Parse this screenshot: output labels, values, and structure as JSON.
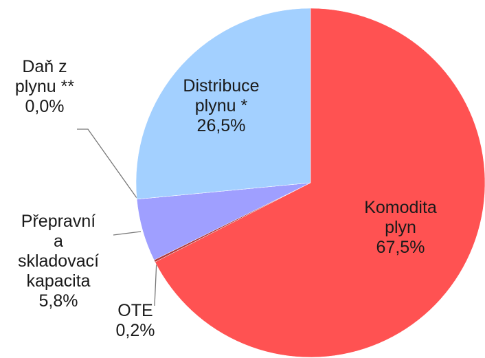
{
  "chart_data": {
    "type": "pie",
    "categories": [
      "Komodita plyn",
      "OTE",
      "Přepravní a skladovací kapacita",
      "Daň z plynu **",
      "Distribuce plynu *"
    ],
    "values": [
      67.5,
      0.2,
      5.8,
      0.0,
      26.5
    ],
    "value_labels": [
      "67,5%",
      "0,2%",
      "5,8%",
      "0,0%",
      "26,5%"
    ],
    "colors": [
      "#ff5252",
      "#b03a3a",
      "#9f9fff",
      "#8888ee",
      "#a3d0ff"
    ]
  }
}
